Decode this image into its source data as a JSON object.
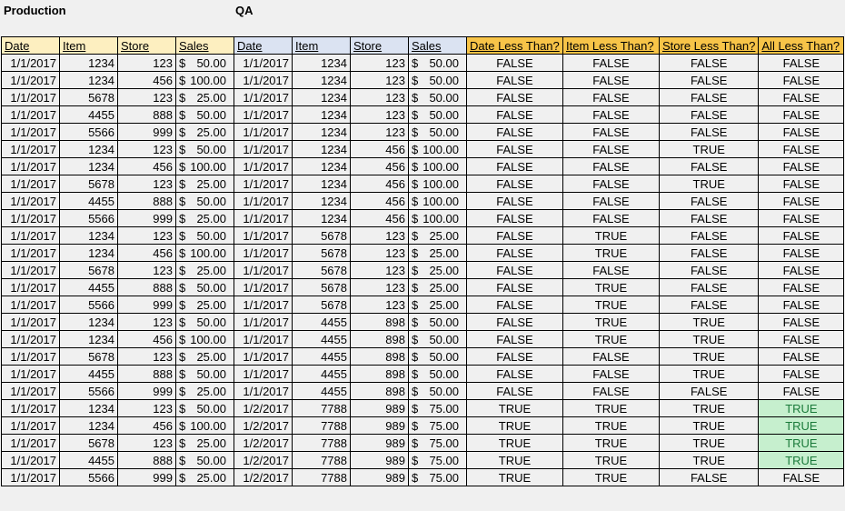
{
  "labels": {
    "production": "Production",
    "qa": "QA"
  },
  "headers": {
    "production": [
      "Date",
      "Item",
      "Store",
      "Sales"
    ],
    "qa": [
      "Date",
      "Item",
      "Store",
      "Sales"
    ],
    "compare": [
      "Date Less Than?",
      "Item Less Than?",
      "Store Less Than?",
      "All Less Than?"
    ]
  },
  "colors": {
    "production_header": "#fdefc0",
    "qa_header": "#dbe3f2",
    "compare_header": "#f7c448",
    "true_highlight": "#c6efce"
  },
  "rows": [
    [
      "1/1/2017",
      "1234",
      "123",
      "50.00",
      "1/1/2017",
      "1234",
      "123",
      "50.00",
      "FALSE",
      "FALSE",
      "FALSE",
      "FALSE"
    ],
    [
      "1/1/2017",
      "1234",
      "456",
      "100.00",
      "1/1/2017",
      "1234",
      "123",
      "50.00",
      "FALSE",
      "FALSE",
      "FALSE",
      "FALSE"
    ],
    [
      "1/1/2017",
      "5678",
      "123",
      "25.00",
      "1/1/2017",
      "1234",
      "123",
      "50.00",
      "FALSE",
      "FALSE",
      "FALSE",
      "FALSE"
    ],
    [
      "1/1/2017",
      "4455",
      "888",
      "50.00",
      "1/1/2017",
      "1234",
      "123",
      "50.00",
      "FALSE",
      "FALSE",
      "FALSE",
      "FALSE"
    ],
    [
      "1/1/2017",
      "5566",
      "999",
      "25.00",
      "1/1/2017",
      "1234",
      "123",
      "50.00",
      "FALSE",
      "FALSE",
      "FALSE",
      "FALSE"
    ],
    [
      "1/1/2017",
      "1234",
      "123",
      "50.00",
      "1/1/2017",
      "1234",
      "456",
      "100.00",
      "FALSE",
      "FALSE",
      "TRUE",
      "FALSE"
    ],
    [
      "1/1/2017",
      "1234",
      "456",
      "100.00",
      "1/1/2017",
      "1234",
      "456",
      "100.00",
      "FALSE",
      "FALSE",
      "FALSE",
      "FALSE"
    ],
    [
      "1/1/2017",
      "5678",
      "123",
      "25.00",
      "1/1/2017",
      "1234",
      "456",
      "100.00",
      "FALSE",
      "FALSE",
      "TRUE",
      "FALSE"
    ],
    [
      "1/1/2017",
      "4455",
      "888",
      "50.00",
      "1/1/2017",
      "1234",
      "456",
      "100.00",
      "FALSE",
      "FALSE",
      "FALSE",
      "FALSE"
    ],
    [
      "1/1/2017",
      "5566",
      "999",
      "25.00",
      "1/1/2017",
      "1234",
      "456",
      "100.00",
      "FALSE",
      "FALSE",
      "FALSE",
      "FALSE"
    ],
    [
      "1/1/2017",
      "1234",
      "123",
      "50.00",
      "1/1/2017",
      "5678",
      "123",
      "25.00",
      "FALSE",
      "TRUE",
      "FALSE",
      "FALSE"
    ],
    [
      "1/1/2017",
      "1234",
      "456",
      "100.00",
      "1/1/2017",
      "5678",
      "123",
      "25.00",
      "FALSE",
      "TRUE",
      "FALSE",
      "FALSE"
    ],
    [
      "1/1/2017",
      "5678",
      "123",
      "25.00",
      "1/1/2017",
      "5678",
      "123",
      "25.00",
      "FALSE",
      "FALSE",
      "FALSE",
      "FALSE"
    ],
    [
      "1/1/2017",
      "4455",
      "888",
      "50.00",
      "1/1/2017",
      "5678",
      "123",
      "25.00",
      "FALSE",
      "TRUE",
      "FALSE",
      "FALSE"
    ],
    [
      "1/1/2017",
      "5566",
      "999",
      "25.00",
      "1/1/2017",
      "5678",
      "123",
      "25.00",
      "FALSE",
      "TRUE",
      "FALSE",
      "FALSE"
    ],
    [
      "1/1/2017",
      "1234",
      "123",
      "50.00",
      "1/1/2017",
      "4455",
      "898",
      "50.00",
      "FALSE",
      "TRUE",
      "TRUE",
      "FALSE"
    ],
    [
      "1/1/2017",
      "1234",
      "456",
      "100.00",
      "1/1/2017",
      "4455",
      "898",
      "50.00",
      "FALSE",
      "TRUE",
      "TRUE",
      "FALSE"
    ],
    [
      "1/1/2017",
      "5678",
      "123",
      "25.00",
      "1/1/2017",
      "4455",
      "898",
      "50.00",
      "FALSE",
      "FALSE",
      "TRUE",
      "FALSE"
    ],
    [
      "1/1/2017",
      "4455",
      "888",
      "50.00",
      "1/1/2017",
      "4455",
      "898",
      "50.00",
      "FALSE",
      "FALSE",
      "TRUE",
      "FALSE"
    ],
    [
      "1/1/2017",
      "5566",
      "999",
      "25.00",
      "1/1/2017",
      "4455",
      "898",
      "50.00",
      "FALSE",
      "FALSE",
      "FALSE",
      "FALSE"
    ],
    [
      "1/1/2017",
      "1234",
      "123",
      "50.00",
      "1/2/2017",
      "7788",
      "989",
      "75.00",
      "TRUE",
      "TRUE",
      "TRUE",
      "TRUE"
    ],
    [
      "1/1/2017",
      "1234",
      "456",
      "100.00",
      "1/2/2017",
      "7788",
      "989",
      "75.00",
      "TRUE",
      "TRUE",
      "TRUE",
      "TRUE"
    ],
    [
      "1/1/2017",
      "5678",
      "123",
      "25.00",
      "1/2/2017",
      "7788",
      "989",
      "75.00",
      "TRUE",
      "TRUE",
      "TRUE",
      "TRUE"
    ],
    [
      "1/1/2017",
      "4455",
      "888",
      "50.00",
      "1/2/2017",
      "7788",
      "989",
      "75.00",
      "TRUE",
      "TRUE",
      "TRUE",
      "TRUE"
    ],
    [
      "1/1/2017",
      "5566",
      "999",
      "25.00",
      "1/2/2017",
      "7788",
      "989",
      "75.00",
      "TRUE",
      "TRUE",
      "FALSE",
      "FALSE"
    ]
  ]
}
